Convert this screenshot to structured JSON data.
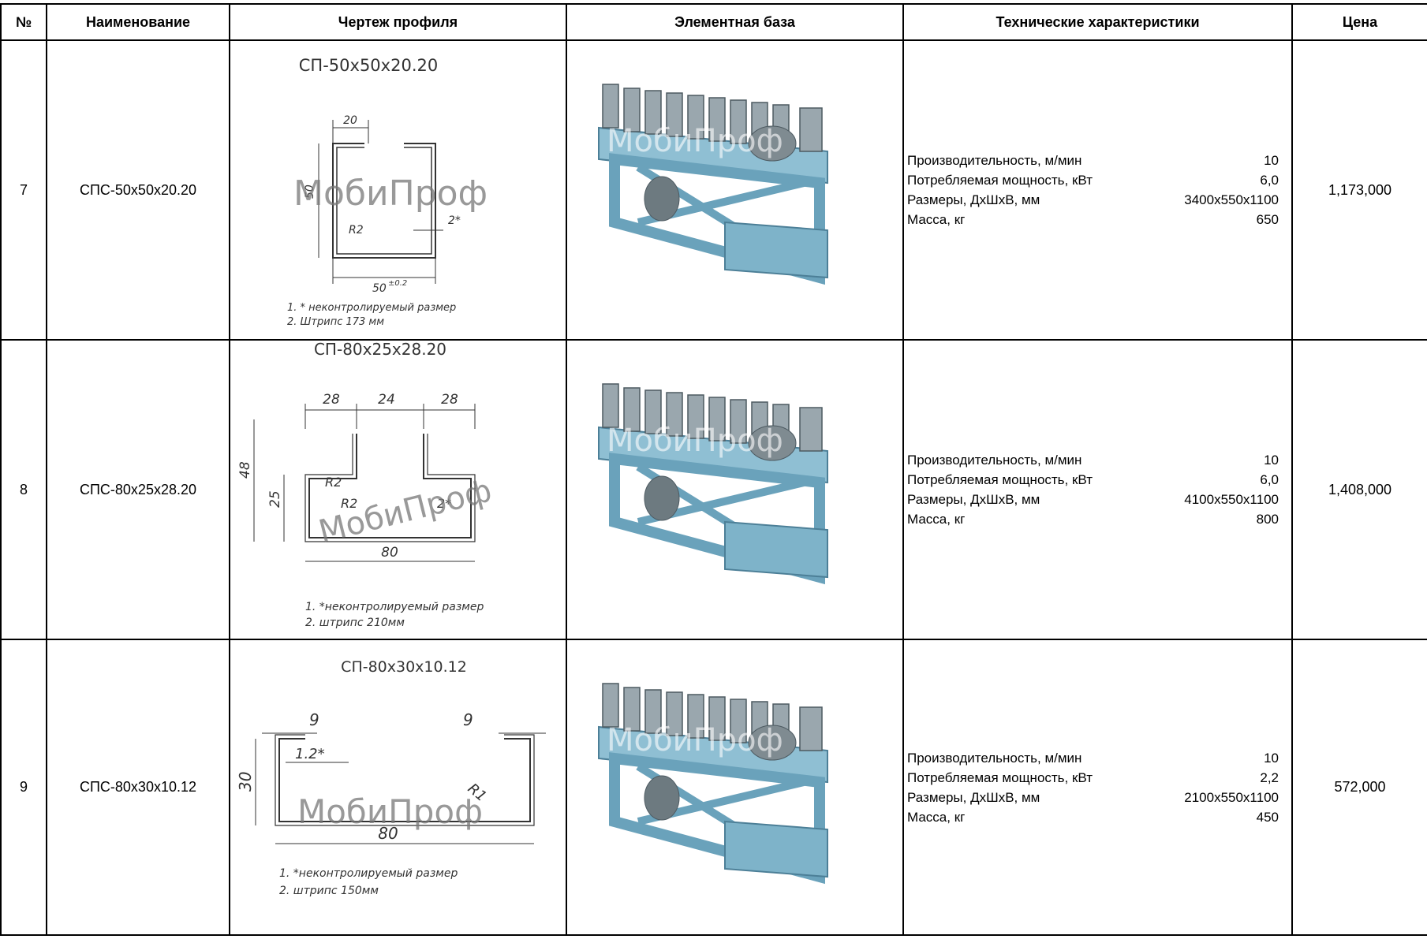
{
  "header": {
    "num": "№",
    "name": "Наименование",
    "drawing": "Чертеж профиля",
    "base": "Элементная база",
    "specs": "Технические характеристики",
    "price": "Цена"
  },
  "watermark": "МобиПроф",
  "spec_labels": {
    "productivity": "Производительность, м/мин",
    "power": "Потребляемая мощность, кВт",
    "dimensions": "Размеры, ДхШхВ, мм",
    "mass": "Масса, кг"
  },
  "rows": [
    {
      "num": "7",
      "name": "СПС-50х50х20.20",
      "drawing_title": "СП-50х50х20.20",
      "dims": {
        "top": "20",
        "height": "50",
        "height_tol": "±0.2",
        "bottom": "50",
        "bottom_tol": "±0.2",
        "radius": "R2",
        "thickness": "2*"
      },
      "notes": [
        "1.   * неконтролируемый размер",
        "2.   Штрипс  173 мм"
      ],
      "specs": {
        "productivity": "10",
        "power": "6,0",
        "dimensions": "3400х550х1100",
        "mass": "650"
      },
      "price": "1,173,000"
    },
    {
      "num": "8",
      "name": "СПС-80х25х28.20",
      "drawing_title": "СП-80х25х28.20",
      "dims": {
        "top_left": "28",
        "top_mid": "24",
        "top_right": "28",
        "height": "48",
        "inner": "25",
        "radius1": "R2",
        "radius2": "R2",
        "thickness": "2*",
        "bottom": "80"
      },
      "notes": [
        "1. *неконтролируемый размер",
        "2. штрипс 210мм"
      ],
      "specs": {
        "productivity": "10",
        "power": "6,0",
        "dimensions": "4100х550х1100",
        "mass": "800"
      },
      "price": "1,408,000"
    },
    {
      "num": "9",
      "name": "СПС-80х30х10.12",
      "drawing_title": "СП-80х30х10.12",
      "dims": {
        "top_left": "9",
        "top_right": "9",
        "height": "30",
        "thickness": "1.2*",
        "radius": "R1",
        "bottom": "80"
      },
      "notes": [
        "1. *неконтролируемый размер",
        "2. штрипс 150мм"
      ],
      "specs": {
        "productivity": "10",
        "power": "2,2",
        "dimensions": "2100х550х1100",
        "mass": "450"
      },
      "price": "572,000"
    }
  ]
}
